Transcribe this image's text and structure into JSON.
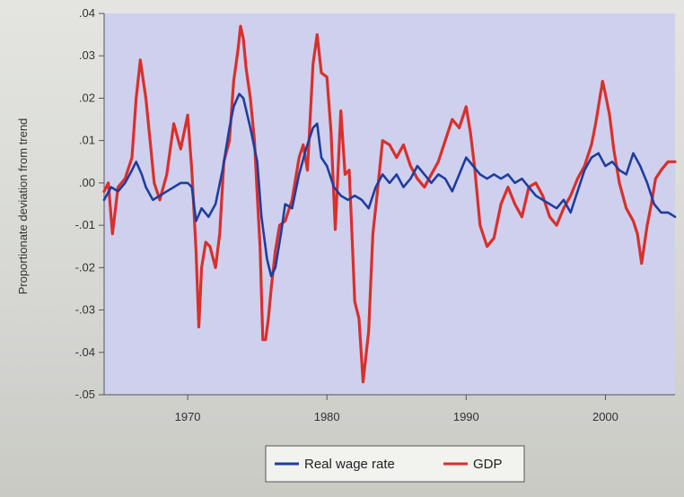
{
  "chart_data": {
    "type": "line",
    "title": "",
    "xlabel": "",
    "ylabel": "Proportionate deviation from trend",
    "xlim": [
      1964,
      2005
    ],
    "ylim": [
      -0.05,
      0.04
    ],
    "x_ticks": [
      1970,
      1980,
      1990,
      2000
    ],
    "x_tick_labels": [
      "1970",
      "1980",
      "1990",
      "2000"
    ],
    "y_ticks": [
      0.04,
      0.03,
      0.02,
      0.01,
      0.0,
      -0.01,
      -0.02,
      -0.03,
      -0.04,
      -0.05
    ],
    "y_tick_labels": [
      ".04",
      ".03",
      ".02",
      ".01",
      ".00",
      "-.01",
      "-.02",
      "-.03",
      "-.04",
      "-.05"
    ],
    "grid": false,
    "legend_position": "bottom-center",
    "series": [
      {
        "name": "Real wage rate",
        "color": "#1f3d9e",
        "points": [
          [
            1964.0,
            -0.004
          ],
          [
            1964.5,
            -0.001
          ],
          [
            1965.0,
            -0.002
          ],
          [
            1965.5,
            0.0
          ],
          [
            1966.0,
            0.003
          ],
          [
            1966.3,
            0.005
          ],
          [
            1966.7,
            0.002
          ],
          [
            1967.0,
            -0.001
          ],
          [
            1967.5,
            -0.004
          ],
          [
            1968.0,
            -0.003
          ],
          [
            1968.5,
            -0.002
          ],
          [
            1969.0,
            -0.001
          ],
          [
            1969.5,
            0.0
          ],
          [
            1970.0,
            0.0
          ],
          [
            1970.3,
            -0.001
          ],
          [
            1970.6,
            -0.009
          ],
          [
            1971.0,
            -0.006
          ],
          [
            1971.5,
            -0.008
          ],
          [
            1972.0,
            -0.005
          ],
          [
            1972.5,
            0.003
          ],
          [
            1973.0,
            0.013
          ],
          [
            1973.3,
            0.018
          ],
          [
            1973.7,
            0.021
          ],
          [
            1974.0,
            0.02
          ],
          [
            1974.5,
            0.013
          ],
          [
            1975.0,
            0.005
          ],
          [
            1975.3,
            -0.008
          ],
          [
            1975.7,
            -0.018
          ],
          [
            1976.0,
            -0.022
          ],
          [
            1976.3,
            -0.02
          ],
          [
            1976.7,
            -0.012
          ],
          [
            1977.0,
            -0.005
          ],
          [
            1977.5,
            -0.006
          ],
          [
            1978.0,
            0.002
          ],
          [
            1978.5,
            0.008
          ],
          [
            1979.0,
            0.013
          ],
          [
            1979.3,
            0.014
          ],
          [
            1979.6,
            0.006
          ],
          [
            1980.0,
            0.004
          ],
          [
            1980.5,
            -0.001
          ],
          [
            1981.0,
            -0.003
          ],
          [
            1981.5,
            -0.004
          ],
          [
            1982.0,
            -0.003
          ],
          [
            1982.5,
            -0.004
          ],
          [
            1983.0,
            -0.006
          ],
          [
            1983.5,
            -0.001
          ],
          [
            1984.0,
            0.002
          ],
          [
            1984.5,
            0.0
          ],
          [
            1985.0,
            0.002
          ],
          [
            1985.5,
            -0.001
          ],
          [
            1986.0,
            0.001
          ],
          [
            1986.5,
            0.004
          ],
          [
            1987.0,
            0.002
          ],
          [
            1987.5,
            0.0
          ],
          [
            1988.0,
            0.002
          ],
          [
            1988.5,
            0.001
          ],
          [
            1989.0,
            -0.002
          ],
          [
            1989.5,
            0.002
          ],
          [
            1990.0,
            0.006
          ],
          [
            1990.5,
            0.004
          ],
          [
            1991.0,
            0.002
          ],
          [
            1991.5,
            0.001
          ],
          [
            1992.0,
            0.002
          ],
          [
            1992.5,
            0.001
          ],
          [
            1993.0,
            0.002
          ],
          [
            1993.5,
            0.0
          ],
          [
            1994.0,
            0.001
          ],
          [
            1994.5,
            -0.001
          ],
          [
            1995.0,
            -0.003
          ],
          [
            1995.5,
            -0.004
          ],
          [
            1996.0,
            -0.005
          ],
          [
            1996.5,
            -0.006
          ],
          [
            1997.0,
            -0.004
          ],
          [
            1997.5,
            -0.007
          ],
          [
            1998.0,
            -0.002
          ],
          [
            1998.5,
            0.003
          ],
          [
            1999.0,
            0.006
          ],
          [
            1999.5,
            0.007
          ],
          [
            2000.0,
            0.004
          ],
          [
            2000.5,
            0.005
          ],
          [
            2001.0,
            0.003
          ],
          [
            2001.5,
            0.002
          ],
          [
            2002.0,
            0.007
          ],
          [
            2002.5,
            0.004
          ],
          [
            2003.0,
            0.0
          ],
          [
            2003.5,
            -0.005
          ],
          [
            2004.0,
            -0.007
          ],
          [
            2004.5,
            -0.007
          ],
          [
            2005.0,
            -0.008
          ]
        ]
      },
      {
        "name": "GDP",
        "color": "#d9302b",
        "points": [
          [
            1964.0,
            -0.002
          ],
          [
            1964.3,
            0.0
          ],
          [
            1964.6,
            -0.012
          ],
          [
            1965.0,
            -0.001
          ],
          [
            1965.5,
            0.001
          ],
          [
            1966.0,
            0.006
          ],
          [
            1966.3,
            0.02
          ],
          [
            1966.6,
            0.029
          ],
          [
            1967.0,
            0.02
          ],
          [
            1967.3,
            0.01
          ],
          [
            1967.6,
            0.0
          ],
          [
            1968.0,
            -0.004
          ],
          [
            1968.5,
            0.002
          ],
          [
            1969.0,
            0.014
          ],
          [
            1969.5,
            0.008
          ],
          [
            1970.0,
            0.016
          ],
          [
            1970.3,
            0.003
          ],
          [
            1970.6,
            -0.016
          ],
          [
            1970.8,
            -0.034
          ],
          [
            1971.0,
            -0.02
          ],
          [
            1971.3,
            -0.014
          ],
          [
            1971.6,
            -0.015
          ],
          [
            1972.0,
            -0.02
          ],
          [
            1972.3,
            -0.012
          ],
          [
            1972.6,
            0.005
          ],
          [
            1973.0,
            0.01
          ],
          [
            1973.3,
            0.024
          ],
          [
            1973.6,
            0.031
          ],
          [
            1973.8,
            0.037
          ],
          [
            1974.0,
            0.034
          ],
          [
            1974.2,
            0.027
          ],
          [
            1974.5,
            0.02
          ],
          [
            1974.8,
            0.01
          ],
          [
            1975.0,
            -0.003
          ],
          [
            1975.2,
            -0.015
          ],
          [
            1975.4,
            -0.037
          ],
          [
            1975.6,
            -0.037
          ],
          [
            1975.8,
            -0.032
          ],
          [
            1976.0,
            -0.025
          ],
          [
            1976.3,
            -0.016
          ],
          [
            1976.6,
            -0.01
          ],
          [
            1977.0,
            -0.009
          ],
          [
            1977.5,
            -0.004
          ],
          [
            1978.0,
            0.006
          ],
          [
            1978.3,
            0.009
          ],
          [
            1978.6,
            0.003
          ],
          [
            1979.0,
            0.028
          ],
          [
            1979.3,
            0.035
          ],
          [
            1979.6,
            0.026
          ],
          [
            1980.0,
            0.025
          ],
          [
            1980.3,
            0.012
          ],
          [
            1980.6,
            -0.011
          ],
          [
            1980.8,
            0.003
          ],
          [
            1981.0,
            0.017
          ],
          [
            1981.3,
            0.002
          ],
          [
            1981.6,
            0.003
          ],
          [
            1981.8,
            -0.012
          ],
          [
            1982.0,
            -0.028
          ],
          [
            1982.3,
            -0.032
          ],
          [
            1982.6,
            -0.047
          ],
          [
            1983.0,
            -0.035
          ],
          [
            1983.3,
            -0.012
          ],
          [
            1983.6,
            -0.003
          ],
          [
            1984.0,
            0.01
          ],
          [
            1984.5,
            0.009
          ],
          [
            1985.0,
            0.006
          ],
          [
            1985.5,
            0.009
          ],
          [
            1986.0,
            0.004
          ],
          [
            1986.5,
            0.001
          ],
          [
            1987.0,
            -0.001
          ],
          [
            1987.5,
            0.002
          ],
          [
            1988.0,
            0.005
          ],
          [
            1988.5,
            0.01
          ],
          [
            1989.0,
            0.015
          ],
          [
            1989.5,
            0.013
          ],
          [
            1990.0,
            0.018
          ],
          [
            1990.3,
            0.012
          ],
          [
            1990.6,
            0.004
          ],
          [
            1991.0,
            -0.01
          ],
          [
            1991.5,
            -0.015
          ],
          [
            1992.0,
            -0.013
          ],
          [
            1992.5,
            -0.005
          ],
          [
            1993.0,
            -0.001
          ],
          [
            1993.5,
            -0.005
          ],
          [
            1994.0,
            -0.008
          ],
          [
            1994.5,
            -0.001
          ],
          [
            1995.0,
            0.0
          ],
          [
            1995.5,
            -0.003
          ],
          [
            1996.0,
            -0.008
          ],
          [
            1996.5,
            -0.01
          ],
          [
            1997.0,
            -0.006
          ],
          [
            1997.5,
            -0.003
          ],
          [
            1998.0,
            0.001
          ],
          [
            1998.5,
            0.004
          ],
          [
            1999.0,
            0.009
          ],
          [
            1999.3,
            0.014
          ],
          [
            1999.6,
            0.02
          ],
          [
            1999.8,
            0.024
          ],
          [
            2000.0,
            0.021
          ],
          [
            2000.3,
            0.016
          ],
          [
            2000.6,
            0.008
          ],
          [
            2001.0,
            0.0
          ],
          [
            2001.5,
            -0.006
          ],
          [
            2002.0,
            -0.009
          ],
          [
            2002.3,
            -0.012
          ],
          [
            2002.6,
            -0.019
          ],
          [
            2003.0,
            -0.01
          ],
          [
            2003.3,
            -0.005
          ],
          [
            2003.6,
            0.001
          ],
          [
            2004.0,
            0.003
          ],
          [
            2004.5,
            0.005
          ],
          [
            2005.0,
            0.005
          ]
        ]
      }
    ]
  }
}
